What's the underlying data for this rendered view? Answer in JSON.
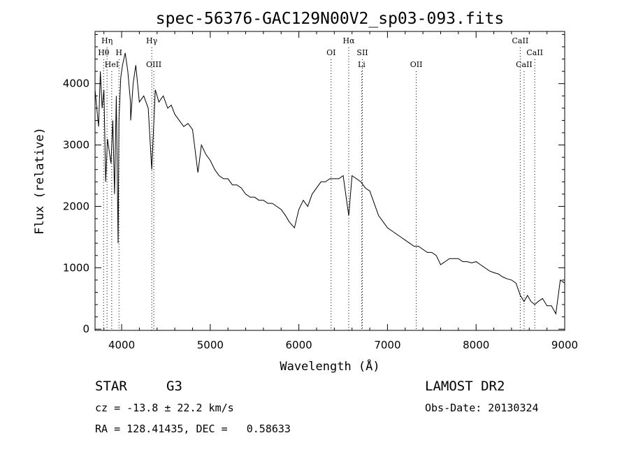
{
  "chart_data": {
    "type": "line",
    "title": "spec-56376-GAC129N00V2_sp03-093.fits",
    "xlabel": "Wavelength (Å)",
    "ylabel": "Flux (relative)",
    "xlim": [
      3700,
      9000
    ],
    "ylim": [
      -20,
      4850
    ],
    "xticks": [
      4000,
      5000,
      6000,
      7000,
      8000,
      9000
    ],
    "xtick_labels": [
      "4000",
      "5000",
      "6000",
      "7000",
      "8000",
      "9000"
    ],
    "yticks": [
      0,
      1000,
      2000,
      3000,
      4000
    ],
    "ytick_labels": [
      "0",
      "1000",
      "2000",
      "3000",
      "4000"
    ],
    "grid": false,
    "series": [
      {
        "color": "#000000",
        "x": [
          3700,
          3720,
          3740,
          3760,
          3780,
          3800,
          3820,
          3840,
          3860,
          3880,
          3900,
          3920,
          3940,
          3960,
          3970,
          3990,
          4010,
          4040,
          4070,
          4100,
          4102,
          4130,
          4160,
          4200,
          4250,
          4300,
          4340,
          4380,
          4420,
          4470,
          4520,
          4560,
          4600,
          4650,
          4700,
          4750,
          4800,
          4861,
          4900,
          4950,
          5000,
          5050,
          5100,
          5150,
          5200,
          5250,
          5300,
          5350,
          5400,
          5450,
          5500,
          5550,
          5600,
          5650,
          5700,
          5750,
          5800,
          5850,
          5890,
          5950,
          6000,
          6050,
          6100,
          6150,
          6200,
          6250,
          6300,
          6350,
          6400,
          6450,
          6500,
          6563,
          6600,
          6650,
          6700,
          6750,
          6800,
          6850,
          6900,
          6950,
          7000,
          7050,
          7100,
          7150,
          7200,
          7250,
          7300,
          7350,
          7400,
          7450,
          7500,
          7550,
          7600,
          7650,
          7700,
          7750,
          7800,
          7850,
          7900,
          7950,
          8000,
          8050,
          8100,
          8150,
          8200,
          8250,
          8300,
          8350,
          8400,
          8450,
          8498,
          8542,
          8580,
          8620,
          8662,
          8700,
          8750,
          8800,
          8850,
          8900,
          8950,
          9000
        ],
        "y": [
          3900,
          3600,
          3300,
          4200,
          3600,
          3900,
          2400,
          3100,
          2900,
          2700,
          3400,
          2200,
          3800,
          1400,
          3400,
          4100,
          4300,
          4500,
          4200,
          3700,
          3400,
          4000,
          4300,
          3700,
          3800,
          3600,
          2600,
          3900,
          3700,
          3800,
          3600,
          3650,
          3500,
          3400,
          3300,
          3350,
          3250,
          2550,
          3000,
          2850,
          2750,
          2600,
          2500,
          2450,
          2450,
          2350,
          2350,
          2300,
          2200,
          2150,
          2150,
          2100,
          2100,
          2050,
          2050,
          2000,
          1950,
          1850,
          1750,
          1650,
          1950,
          2100,
          2000,
          2200,
          2300,
          2400,
          2400,
          2450,
          2450,
          2450,
          2500,
          1850,
          2500,
          2450,
          2400,
          2300,
          2250,
          2050,
          1850,
          1750,
          1650,
          1600,
          1550,
          1500,
          1450,
          1400,
          1350,
          1350,
          1300,
          1250,
          1250,
          1200,
          1050,
          1100,
          1150,
          1150,
          1150,
          1100,
          1100,
          1080,
          1100,
          1050,
          1000,
          950,
          920,
          900,
          850,
          820,
          800,
          750,
          550,
          450,
          550,
          450,
          400,
          450,
          500,
          380,
          380,
          250,
          800,
          750
        ]
      }
    ],
    "line_markers": [
      {
        "label": "Hη",
        "x": 3835,
        "row": 0
      },
      {
        "label": "Hθ",
        "x": 3797,
        "row": 1
      },
      {
        "label": "H",
        "x": 3970,
        "row": 1
      },
      {
        "label": "HeI",
        "x": 3888,
        "row": 2
      },
      {
        "label": "Hγ",
        "x": 4340,
        "row": 0
      },
      {
        "label": "OIII",
        "x": 4363,
        "row": 2
      },
      {
        "label": "Hα",
        "x": 6563,
        "row": 0
      },
      {
        "label": "OI",
        "x": 6364,
        "row": 1
      },
      {
        "label": "SII",
        "x": 6717,
        "row": 1
      },
      {
        "label": "Li",
        "x": 6708,
        "row": 2
      },
      {
        "label": "OII",
        "x": 7325,
        "row": 2
      },
      {
        "label": "CaII",
        "x": 8498,
        "row": 0
      },
      {
        "label": "CaII",
        "x": 8662,
        "row": 1
      },
      {
        "label": "CaII",
        "x": 8542,
        "row": 2
      }
    ]
  },
  "info": {
    "object_type": "STAR",
    "subclass": "G3",
    "survey": "LAMOST DR2",
    "redshift": "cz = -13.8 ± 22.2 km/s",
    "obs_date": "Obs-Date: 20130324",
    "coords": "RA = 128.41435, DEC =   0.58633"
  }
}
